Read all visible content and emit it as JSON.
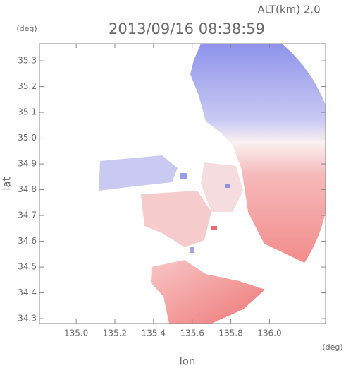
{
  "chart_data": {
    "type": "map",
    "title": "2013/09/16 08:38:59",
    "subtitle": "ALT(km) 2.0",
    "x_label": "lon",
    "y_label": "lat",
    "x_unit": "(deg)",
    "y_unit": "(deg)",
    "xlim": [
      134.81,
      136.29
    ],
    "ylim": [
      34.281,
      35.366
    ],
    "xticks": [
      {
        "value": 135,
        "label": "135.0"
      },
      135.2,
      135.4,
      135.6,
      135.8,
      {
        "value": 136,
        "label": "136.0"
      }
    ],
    "yticks": [
      34.3,
      34.4,
      34.5,
      34.6,
      34.7,
      34.8,
      34.9,
      {
        "value": 35,
        "label": "35.0"
      },
      35.1,
      35.2,
      35.3
    ]
  }
}
